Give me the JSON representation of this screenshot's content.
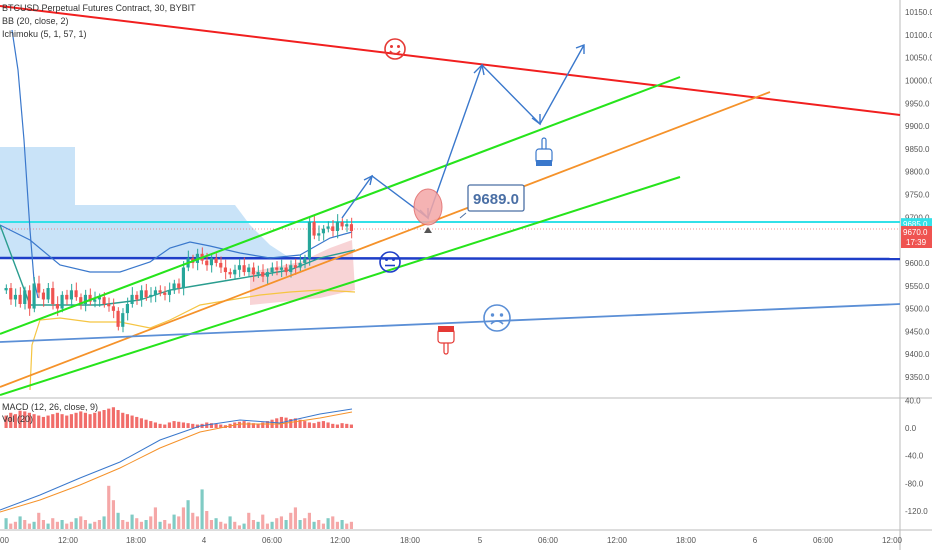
{
  "legend": {
    "symbol_line": "BTCUSD Perpetual Futures Contract, 30, BYBIT",
    "bb_line": "BB (20, close, 2)",
    "ichimoku_line": "Ichimoku (5, 1, 57, 1)",
    "macd_line": "MACD (12, 26, close, 9)",
    "vol_line": "Vol (20)"
  },
  "price_axis": {
    "ticks": [
      "10150.0",
      "10100.0",
      "10050.0",
      "10000.0",
      "9950.0",
      "9900.0",
      "9850.0",
      "9800.0",
      "9750.0",
      "9700.0",
      "9650.0",
      "9600.0",
      "9550.0",
      "9500.0",
      "9450.0",
      "9400.0",
      "9350.0"
    ],
    "badge_cyan": "9685.0",
    "badge_red_price": "9670.0",
    "badge_red_time": "17:39"
  },
  "macd_axis": {
    "ticks": [
      "40.0",
      "0.0",
      "-40.0",
      "-80.0",
      "-120.0"
    ]
  },
  "time_axis": {
    "ticks": [
      "00",
      "12:00",
      "18:00",
      "4",
      "06:00",
      "12:00",
      "18:00",
      "5",
      "06:00",
      "12:00",
      "18:00",
      "6",
      "06:00",
      "12:00"
    ]
  },
  "annotation": {
    "callout": "9689.0"
  },
  "colors": {
    "resistance": "#f11f1f",
    "channel": "#26e41b",
    "trend_orange": "#f5922a",
    "horizontal_blue": "#1e3ec8",
    "support_blue": "#5b8fd6",
    "cyan": "#33e0e8",
    "arrow": "#3a78cc",
    "bull": "#26a69a",
    "bear": "#ef5350",
    "cloud": "#b7d9f5"
  },
  "icons": [
    "happy-face-icon",
    "neutral-face-icon",
    "sad-face-icon",
    "pointing-down-hand-icon",
    "pointing-up-hand-icon"
  ],
  "chart_data": {
    "type": "candlestick",
    "title": "BTCUSD Perpetual Futures Contract, 30, BYBIT",
    "ylim": [
      9300,
      10175
    ],
    "candles_close": [
      9545,
      9520,
      9530,
      9510,
      9540,
      9500,
      9555,
      9535,
      9520,
      9545,
      9510,
      9500,
      9530,
      9520,
      9540,
      9525,
      9510,
      9530,
      9515,
      9520,
      9525,
      9510,
      9505,
      9495,
      9460,
      9490,
      9510,
      9530,
      9520,
      9540,
      9525,
      9530,
      9540,
      9535,
      9530,
      9540,
      9555,
      9545,
      9590,
      9610,
      9600,
      9620,
      9605,
      9595,
      9610,
      9600,
      9590,
      9580,
      9575,
      9585,
      9595,
      9580,
      9590,
      9575,
      9580,
      9570,
      9580,
      9590,
      9585,
      9590,
      9580,
      9595,
      9590,
      9600,
      9610,
      9690,
      9660,
      9665,
      9675,
      9680,
      9670,
      9690,
      9680,
      9685,
      9670
    ],
    "macd_values": [
      18,
      22,
      20,
      25,
      24,
      22,
      20,
      18,
      16,
      18,
      20,
      22,
      20,
      18,
      20,
      22,
      24,
      22,
      20,
      22,
      24,
      26,
      28,
      30,
      26,
      22,
      20,
      18,
      16,
      14,
      12,
      10,
      8,
      6,
      5,
      8,
      10,
      9,
      8,
      7,
      6,
      5,
      6,
      8,
      7,
      6,
      5,
      4,
      6,
      8,
      9,
      10,
      8,
      7,
      6,
      8,
      10,
      12,
      14,
      16,
      15,
      13,
      14,
      12,
      10,
      8,
      7,
      9,
      10,
      8,
      6,
      5,
      7,
      6,
      5
    ],
    "volume_values": [
      6,
      3,
      4,
      7,
      5,
      3,
      4,
      9,
      5,
      3,
      6,
      4,
      5,
      3,
      4,
      6,
      7,
      5,
      3,
      4,
      5,
      7,
      24,
      16,
      9,
      5,
      4,
      8,
      6,
      4,
      5,
      7,
      12,
      4,
      5,
      3,
      8,
      7,
      12,
      16,
      9,
      7,
      22,
      10,
      5,
      6,
      4,
      3,
      7,
      4,
      2,
      3,
      9,
      5,
      4,
      8,
      3,
      4,
      6,
      7,
      5,
      9,
      12,
      5,
      6,
      9,
      4,
      5,
      3,
      6,
      7,
      4,
      5,
      3,
      4
    ],
    "levels": {
      "horizontal_blue": 9610,
      "cyan": 9685,
      "target_callout": 9689.0
    },
    "xlabel": "",
    "ylabel": ""
  }
}
